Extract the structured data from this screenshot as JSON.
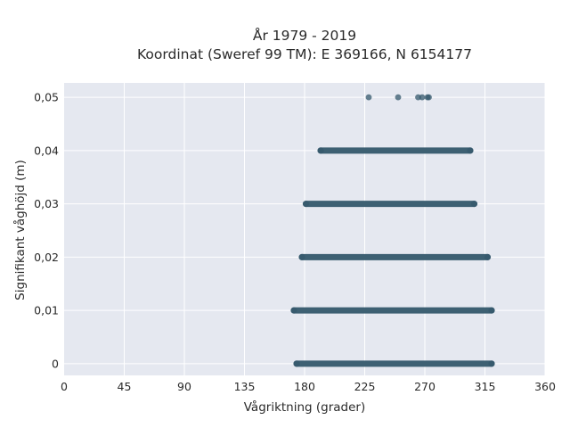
{
  "chart_data": {
    "type": "scatter",
    "title_line1": "År 1979 - 2019",
    "title_line2": "Koordinat (Sweref 99 TM): E 369166, N 6154177",
    "xlabel": "Vågriktning (grader)",
    "ylabel": "Signifikant våghöjd (m)",
    "xlim": [
      0,
      360
    ],
    "ylim": [
      -0.0022,
      0.0527
    ],
    "x_ticks": [
      0,
      45,
      90,
      135,
      180,
      225,
      270,
      315,
      360
    ],
    "y_ticks": [
      0,
      0.01,
      0.02,
      0.03,
      0.04,
      0.05
    ],
    "y_tick_labels": [
      "0",
      "0,01",
      "0,02",
      "0,03",
      "0,04",
      "0,05"
    ],
    "grid": true,
    "series": [
      {
        "color": "#34586c",
        "bands": [
          {
            "y": 0.0,
            "x_min": 174,
            "x_max": 320
          },
          {
            "y": 0.01,
            "x_min": 172,
            "x_max": 320
          },
          {
            "y": 0.02,
            "x_min": 178,
            "x_max": 317
          },
          {
            "y": 0.03,
            "x_min": 181,
            "x_max": 307
          },
          {
            "y": 0.04,
            "x_min": 192,
            "x_max": 304
          }
        ],
        "points": [
          {
            "x": 228,
            "y": 0.05
          },
          {
            "x": 250,
            "y": 0.05
          },
          {
            "x": 265,
            "y": 0.05
          },
          {
            "x": 268,
            "y": 0.05
          },
          {
            "x": 272,
            "y": 0.05
          },
          {
            "x": 273,
            "y": 0.05
          }
        ]
      }
    ]
  },
  "colors": {
    "plot_background": "#e5e8f0",
    "grid": "#ffffff",
    "marker": "#34586c"
  }
}
